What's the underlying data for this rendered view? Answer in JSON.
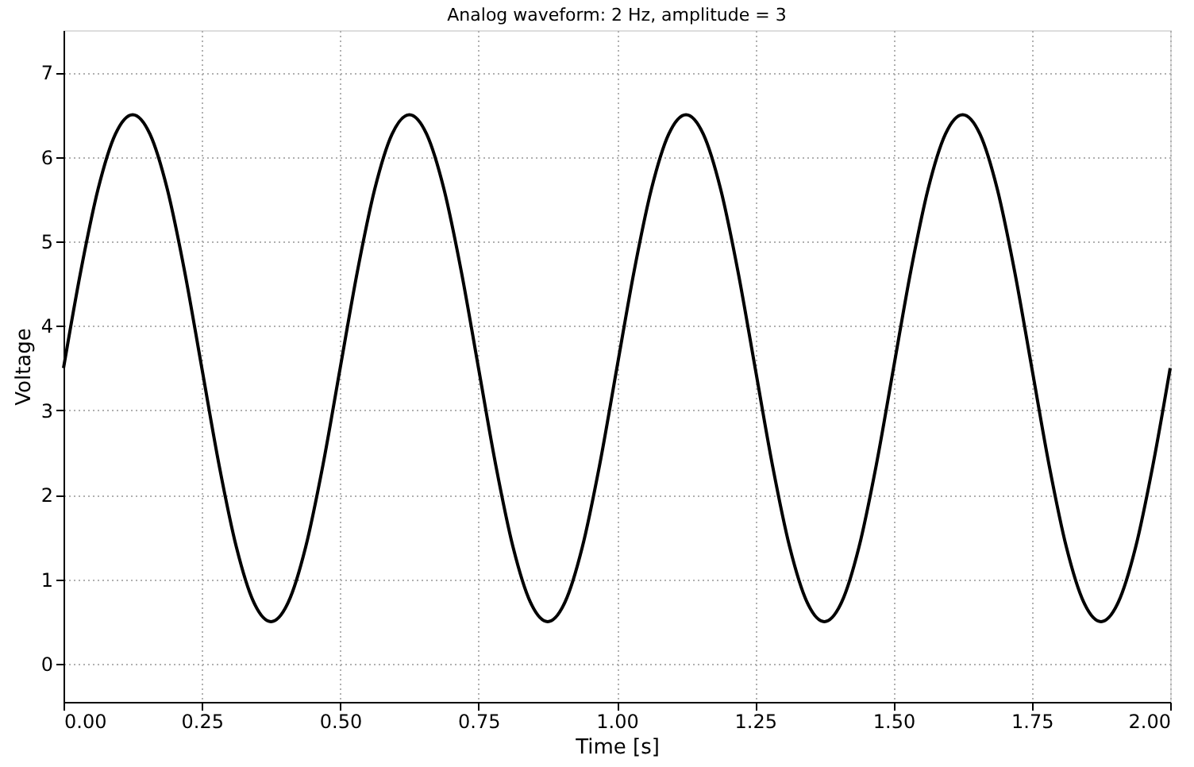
{
  "chart_data": {
    "type": "line",
    "title": "Analog waveform: 2 Hz, amplitude = 3",
    "xlabel": "Time [s]",
    "ylabel": "Voltage",
    "x": [
      0,
      0.03125,
      0.0625,
      0.09375,
      0.125,
      0.15625,
      0.1875,
      0.21875,
      0.25,
      0.28125,
      0.3125,
      0.34375,
      0.375,
      0.40625,
      0.4375,
      0.46875,
      0.5,
      0.53125,
      0.5625,
      0.59375,
      0.625,
      0.65625,
      0.6875,
      0.71875,
      0.75,
      0.78125,
      0.8125,
      0.84375,
      0.875,
      0.90625,
      0.9375,
      0.96875,
      1,
      1.03125,
      1.0625,
      1.09375,
      1.125,
      1.15625,
      1.1875,
      1.21875,
      1.25,
      1.28125,
      1.3125,
      1.34375,
      1.375,
      1.40625,
      1.4375,
      1.46875,
      1.5,
      1.53125,
      1.5625,
      1.59375,
      1.625,
      1.65625,
      1.6875,
      1.71875,
      1.75,
      1.78125,
      1.8125,
      1.84375,
      1.875,
      1.90625,
      1.9375,
      1.96875,
      2
    ],
    "series": [
      {
        "color": "#000000",
        "values": [
          3.5,
          4.65,
          5.62,
          6.27,
          6.5,
          6.27,
          5.62,
          4.65,
          3.5,
          2.35,
          1.38,
          0.73,
          0.5,
          0.73,
          1.38,
          2.35,
          3.5,
          4.65,
          5.62,
          6.27,
          6.5,
          6.27,
          5.62,
          4.65,
          3.5,
          2.35,
          1.38,
          0.73,
          0.5,
          0.73,
          1.38,
          2.35,
          3.5,
          4.65,
          5.62,
          6.27,
          6.5,
          6.27,
          5.62,
          4.65,
          3.5,
          2.35,
          1.38,
          0.73,
          0.5,
          0.73,
          1.38,
          2.35,
          3.5,
          4.65,
          5.62,
          6.27,
          6.5,
          6.27,
          5.62,
          4.65,
          3.5,
          2.35,
          1.38,
          0.73,
          0.5,
          0.73,
          1.38,
          2.35,
          3.5
        ]
      }
    ],
    "xlim": [
      0,
      2
    ],
    "ylim": [
      -0.45,
      7.5
    ],
    "xticks": [
      {
        "value": 0,
        "label": "0.00"
      },
      {
        "value": 0.25,
        "label": "0.25"
      },
      {
        "value": 0.5,
        "label": "0.50"
      },
      {
        "value": 0.75,
        "label": "0.75"
      },
      {
        "value": 1,
        "label": "1.00"
      },
      {
        "value": 1.25,
        "label": "1.25"
      },
      {
        "value": 1.5,
        "label": "1.50"
      },
      {
        "value": 1.75,
        "label": "1.75"
      },
      {
        "value": 2,
        "label": "2.00"
      }
    ],
    "yticks": [
      0,
      1,
      2,
      3,
      4,
      5,
      6,
      7
    ],
    "grid": true,
    "marker": "none",
    "line_style": "solid"
  }
}
